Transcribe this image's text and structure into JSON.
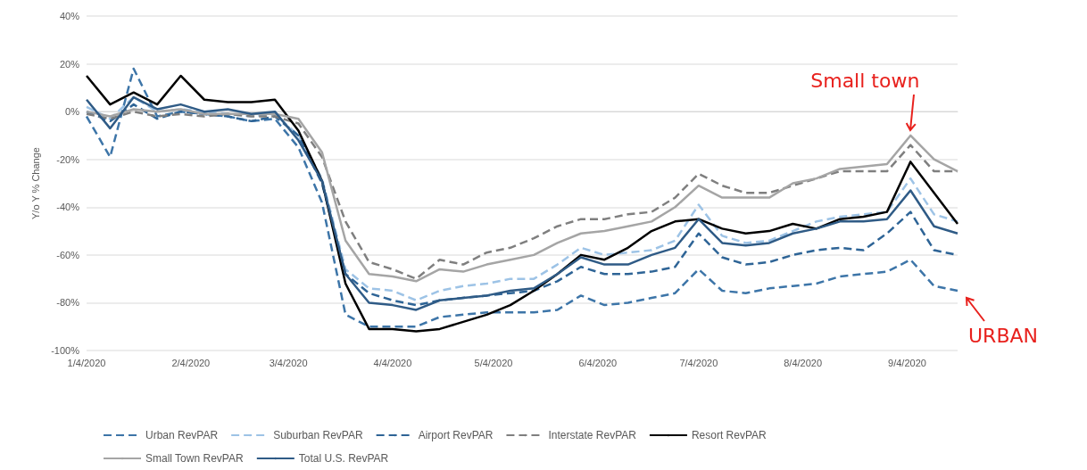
{
  "chart_data": {
    "type": "line",
    "ylabel": "Y/o Y % Change",
    "x": [
      "2020-01-04",
      "2020-01-11",
      "2020-01-18",
      "2020-01-25",
      "2020-02-01",
      "2020-02-08",
      "2020-02-15",
      "2020-02-22",
      "2020-02-29",
      "2020-03-07",
      "2020-03-14",
      "2020-03-21",
      "2020-03-28",
      "2020-04-04",
      "2020-04-11",
      "2020-04-18",
      "2020-04-25",
      "2020-05-02",
      "2020-05-09",
      "2020-05-16",
      "2020-05-23",
      "2020-05-30",
      "2020-06-06",
      "2020-06-13",
      "2020-06-20",
      "2020-06-27",
      "2020-07-04",
      "2020-07-11",
      "2020-07-18",
      "2020-07-25",
      "2020-08-01",
      "2020-08-08",
      "2020-08-15",
      "2020-08-22",
      "2020-08-29",
      "2020-09-05",
      "2020-09-12",
      "2020-09-19"
    ],
    "series": [
      {
        "name": "Urban RevPAR",
        "color": "#3d75a8",
        "line_style": "dashed",
        "values": [
          -2,
          -19,
          18,
          -2,
          0,
          -1,
          -2,
          -4,
          -3,
          -15,
          -38,
          -85,
          -90,
          -90,
          -90,
          -86,
          -85,
          -84,
          -84,
          -84,
          -83,
          -77,
          -81,
          -80,
          -78,
          -76,
          -66,
          -75,
          -76,
          -74,
          -73,
          -72,
          -69,
          -68,
          -67,
          -62,
          -73,
          -75
        ]
      },
      {
        "name": "Suburban RevPAR",
        "color": "#9dc3e6",
        "line_style": "dashed",
        "values": [
          2,
          -3,
          6,
          0,
          1,
          0,
          -1,
          -2,
          -1,
          -10,
          -28,
          -66,
          -74,
          -75,
          -79,
          -75,
          -73,
          -72,
          -70,
          -70,
          -64,
          -57,
          -60,
          -59,
          -58,
          -54,
          -39,
          -52,
          -55,
          -54,
          -50,
          -46,
          -44,
          -43,
          -42,
          -28,
          -43,
          -46
        ]
      },
      {
        "name": "Airport RevPAR",
        "color": "#2e6496",
        "line_style": "dashed",
        "values": [
          0,
          -4,
          3,
          -3,
          0,
          -1,
          -2,
          -4,
          -2,
          -10,
          -30,
          -68,
          -76,
          -79,
          -81,
          -79,
          -78,
          -77,
          -76,
          -75,
          -71,
          -65,
          -68,
          -68,
          -67,
          -65,
          -51,
          -61,
          -64,
          -63,
          -60,
          -58,
          -57,
          -58,
          -51,
          -42,
          -58,
          -60
        ]
      },
      {
        "name": "Interstate RevPAR",
        "color": "#7f7f7f",
        "line_style": "dashed",
        "values": [
          -1,
          -3,
          0,
          -2,
          -1,
          -2,
          -1,
          -2,
          -2,
          -5,
          -19,
          -46,
          -63,
          -66,
          -70,
          -62,
          -64,
          -59,
          -57,
          -53,
          -48,
          -45,
          -45,
          -43,
          -42,
          -36,
          -26,
          -31,
          -34,
          -34,
          -31,
          -28,
          -25,
          -25,
          -25,
          -14,
          -25,
          -25
        ]
      },
      {
        "name": "Resort RevPAR",
        "color": "#000000",
        "line_style": "solid",
        "values": [
          15,
          3,
          8,
          3,
          15,
          5,
          4,
          4,
          5,
          -8,
          -29,
          -72,
          -91,
          -91,
          -92,
          -91,
          -88,
          -85,
          -81,
          -75,
          -68,
          -60,
          -62,
          -57,
          -50,
          -46,
          -45,
          -49,
          -51,
          -50,
          -47,
          -49,
          -45,
          -44,
          -42,
          -21,
          -34,
          -47
        ]
      },
      {
        "name": "Small Town RevPAR",
        "color": "#a5a5a5",
        "line_style": "solid",
        "values": [
          0,
          -2,
          1,
          0,
          1,
          -1,
          -1,
          -1,
          -1,
          -3,
          -17,
          -54,
          -68,
          -69,
          -71,
          -66,
          -67,
          -64,
          -62,
          -60,
          -55,
          -51,
          -50,
          -48,
          -46,
          -40,
          -31,
          -36,
          -36,
          -36,
          -30,
          -28,
          -24,
          -23,
          -22,
          -10,
          -20,
          -25
        ]
      },
      {
        "name": "Total U.S. RevPAR",
        "color": "#2f5b86",
        "line_style": "solid",
        "values": [
          5,
          -7,
          6,
          1,
          3,
          0,
          1,
          -1,
          0,
          -12,
          -29,
          -68,
          -80,
          -81,
          -83,
          -79,
          -78,
          -77,
          -75,
          -74,
          -68,
          -61,
          -64,
          -64,
          -60,
          -57,
          -45,
          -55,
          -56,
          -55,
          -51,
          -49,
          -46,
          -46,
          -45,
          -33,
          -48,
          -51
        ]
      }
    ],
    "xlim": [
      "2020-01-04",
      "2020-09-19"
    ],
    "xticks": [
      {
        "value": "2020-01-04",
        "label": "1/4/2020"
      },
      {
        "value": "2020-02-04",
        "label": "2/4/2020"
      },
      {
        "value": "2020-03-04",
        "label": "3/4/2020"
      },
      {
        "value": "2020-04-04",
        "label": "4/4/2020"
      },
      {
        "value": "2020-05-04",
        "label": "5/4/2020"
      },
      {
        "value": "2020-06-04",
        "label": "6/4/2020"
      },
      {
        "value": "2020-07-04",
        "label": "7/4/2020"
      },
      {
        "value": "2020-08-04",
        "label": "8/4/2020"
      },
      {
        "value": "2020-09-04",
        "label": "9/4/2020"
      }
    ],
    "ylim": [
      -100,
      40
    ],
    "yticks": [
      {
        "value": -100,
        "label": "-100%"
      },
      {
        "value": -80,
        "label": "-80%"
      },
      {
        "value": -60,
        "label": "-60%"
      },
      {
        "value": -40,
        "label": "-40%"
      },
      {
        "value": -20,
        "label": "-20%"
      },
      {
        "value": 0,
        "label": "0%"
      },
      {
        "value": 20,
        "label": "20%"
      },
      {
        "value": 40,
        "label": "40%"
      }
    ],
    "grid": "y",
    "legend": "bottom",
    "marker": "none",
    "annotations": [
      {
        "text": "Small town",
        "x": "2020-09-05",
        "y": -10
      },
      {
        "text": "URBAN",
        "x": "2020-09-19",
        "y": -75
      }
    ]
  }
}
